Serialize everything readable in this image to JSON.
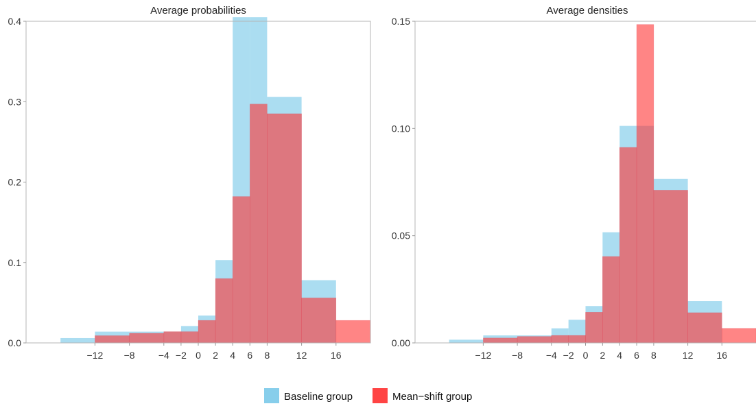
{
  "colors": {
    "baseline_fill": "#87CEEB",
    "meanshift_fill": "#FF3333",
    "overlap_fill": "#D66A78"
  },
  "legend": {
    "items": [
      {
        "label": "Baseline group",
        "color": "#87CEEB"
      },
      {
        "label": "Mean−shift group",
        "color": "#FF4444"
      }
    ]
  },
  "chart_data": [
    {
      "type": "bar",
      "title": "Average probabilities",
      "xlabel": "",
      "ylabel": "",
      "xlim": [
        -20,
        20
      ],
      "ylim": [
        0,
        0.4
      ],
      "xticks": [
        -12,
        -8,
        -4,
        -2,
        0,
        2,
        4,
        6,
        8,
        12,
        16
      ],
      "xtick_labels": [
        "−12",
        "−8",
        "−4",
        "−2",
        "0",
        "2",
        "4",
        "6",
        "8",
        "12",
        "16"
      ],
      "yticks": [
        0,
        0.1,
        0.2,
        0.3,
        0.4
      ],
      "ytick_labels": [
        "0.0",
        "0.1",
        "0.2",
        "0.3",
        "0.4"
      ],
      "bin_edges": [
        -16,
        -12,
        -8,
        -4,
        -2,
        0,
        2,
        4,
        6,
        8,
        12,
        16,
        20
      ],
      "series": [
        {
          "name": "Baseline group",
          "values": [
            0.006,
            0.014,
            0.014,
            0.014,
            0.021,
            0.034,
            0.103,
            0.405,
            0.405,
            0.306,
            0.078,
            0
          ]
        },
        {
          "name": "Mean−shift group",
          "values": [
            0,
            0.009,
            0.012,
            0.014,
            0.014,
            0.028,
            0.08,
            0.182,
            0.297,
            0.285,
            0.056,
            0.028
          ]
        }
      ]
    },
    {
      "type": "bar",
      "title": "Average densities",
      "xlabel": "",
      "ylabel": "",
      "xlim": [
        -20,
        20
      ],
      "ylim": [
        0,
        0.15
      ],
      "xticks": [
        -12,
        -8,
        -4,
        -2,
        0,
        2,
        4,
        6,
        8,
        12,
        16
      ],
      "xtick_labels": [
        "−12",
        "−8",
        "−4",
        "−2",
        "0",
        "2",
        "4",
        "6",
        "8",
        "12",
        "16"
      ],
      "yticks": [
        0,
        0.05,
        0.1,
        0.15
      ],
      "ytick_labels": [
        "0.00",
        "0.05",
        "0.10",
        "0.15"
      ],
      "bin_edges": [
        -16,
        -12,
        -8,
        -4,
        -2,
        0,
        2,
        4,
        6,
        8,
        12,
        16,
        20
      ],
      "series": [
        {
          "name": "Baseline group",
          "values": [
            0.0015,
            0.0035,
            0.0035,
            0.0068,
            0.0108,
            0.0172,
            0.0516,
            0.1012,
            0.1012,
            0.0765,
            0.0195,
            0
          ]
        },
        {
          "name": "Mean−shift group",
          "values": [
            0,
            0.0023,
            0.003,
            0.0035,
            0.0035,
            0.0143,
            0.0403,
            0.0912,
            0.1485,
            0.0712,
            0.0141,
            0.0068
          ]
        }
      ]
    }
  ]
}
